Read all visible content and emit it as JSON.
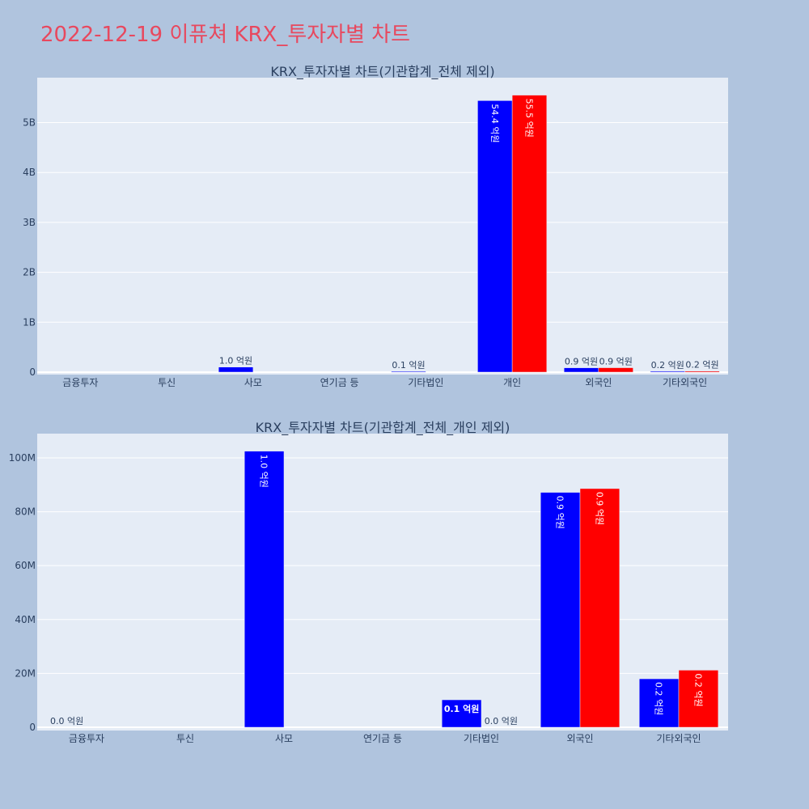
{
  "page": {
    "title": "2022-12-19 이퓨쳐 KRX_투자자별 차트",
    "title_color": "#e8485e",
    "background": "#b0c4de",
    "plot_background": "#e5ecf6"
  },
  "chart_data": [
    {
      "type": "bar",
      "title": "KRX_투자자별 차트(기관합계_전체 제외)",
      "categories": [
        "금융투자",
        "투신",
        "사모",
        "연기금 등",
        "기타법인",
        "개인",
        "외국인",
        "기타외국인"
      ],
      "series": [
        {
          "color": "#0000ff",
          "values": [
            0,
            0,
            102000000,
            0,
            10000000,
            5440000000,
            87000000,
            18000000
          ],
          "labels": [
            "",
            "",
            "1.0 억원",
            "",
            "0.1 억원",
            "54.4 억원",
            "0.9 억원",
            "0.2 억원"
          ]
        },
        {
          "color": "#ff0000",
          "values": [
            0,
            0,
            0,
            0,
            0,
            5550000000,
            88500000,
            21000000
          ],
          "labels": [
            "",
            "",
            "",
            "",
            "",
            "55.5 억원",
            "0.9 억원",
            "0.2 억원"
          ]
        }
      ],
      "ylim": [
        0,
        5900000000
      ],
      "yticks": [
        0,
        1000000000,
        2000000000,
        3000000000,
        4000000000,
        5000000000
      ],
      "ytick_labels": [
        "0",
        "1B",
        "2B",
        "3B",
        "4B",
        "5B"
      ],
      "grid": true
    },
    {
      "type": "bar",
      "title": "KRX_투자자별 차트(기관합계_전체_개인 제외)",
      "categories": [
        "금융투자",
        "투신",
        "사모",
        "연기금 등",
        "기타법인",
        "외국인",
        "기타외국인"
      ],
      "series": [
        {
          "color": "#0000ff",
          "values": [
            0,
            0,
            102500000,
            0,
            10200000,
            87200000,
            18000000
          ],
          "labels": [
            "0.0 억원",
            "",
            "1.0 억원",
            "",
            "0.1 억원",
            "0.9 억원",
            "0.2 억원"
          ]
        },
        {
          "color": "#ff0000",
          "values": [
            0,
            0,
            0,
            0,
            0,
            88600000,
            21200000
          ],
          "labels": [
            "",
            "",
            "",
            "",
            "0.0 억원",
            "0.9 억원",
            "0.2 억원"
          ]
        }
      ],
      "ylim": [
        0,
        109000000
      ],
      "yticks": [
        0,
        20000000,
        40000000,
        60000000,
        80000000,
        100000000
      ],
      "ytick_labels": [
        "0",
        "20M",
        "40M",
        "60M",
        "80M",
        "100M"
      ],
      "grid": true
    }
  ]
}
